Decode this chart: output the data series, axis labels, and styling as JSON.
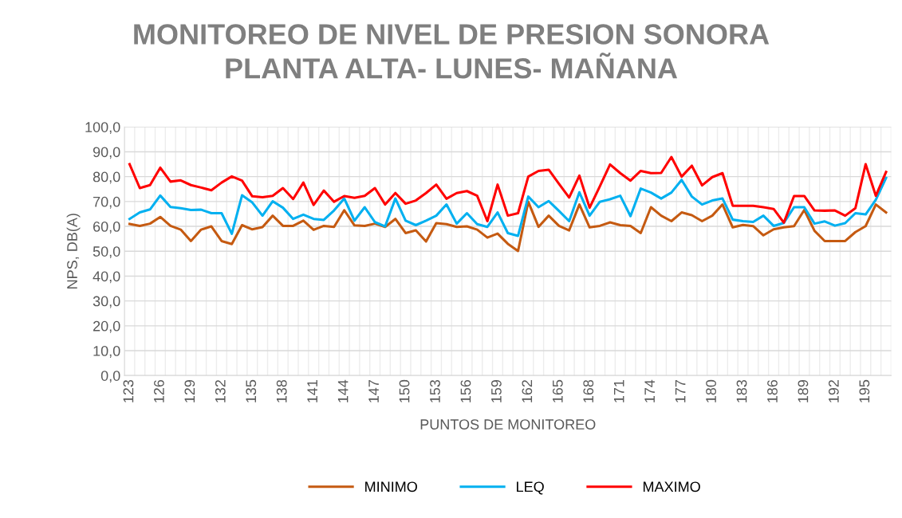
{
  "chart_data": {
    "type": "line",
    "title": "MONITOREO DE NIVEL DE PRESION SONORA\nPLANTA ALTA- LUNES- MAÑANA",
    "xlabel": "PUNTOS DE MONITOREO",
    "ylabel": "NPS, DB(A)",
    "categories": [
      "123",
      null,
      null,
      "126",
      null,
      null,
      "129",
      null,
      null,
      "132",
      null,
      null,
      "135",
      null,
      null,
      "138",
      null,
      null,
      "141",
      null,
      null,
      "144",
      null,
      null,
      "147",
      null,
      null,
      "150",
      null,
      null,
      "153",
      null,
      null,
      "156",
      null,
      null,
      "159",
      null,
      null,
      "162",
      null,
      null,
      "165",
      null,
      null,
      "168",
      null,
      null,
      "171",
      null,
      null,
      "174",
      null,
      null,
      "177",
      null,
      null,
      "180",
      null,
      null,
      "183",
      null,
      null,
      "186",
      null,
      null,
      "189",
      null,
      null,
      "192",
      null,
      null,
      "195",
      null,
      null
    ],
    "series": [
      {
        "name": "MINIMO",
        "color": "#c55a11",
        "values": [
          61.0,
          60.2,
          61.1,
          63.8,
          60.2,
          58.7,
          54.1,
          58.7,
          60.0,
          54.1,
          52.9,
          60.5,
          58.8,
          59.7,
          64.3,
          60.2,
          60.2,
          62.3,
          58.6,
          60.2,
          59.8,
          66.5,
          60.4,
          60.2,
          61.1,
          59.8,
          63.0,
          57.3,
          58.4,
          53.9,
          61.3,
          60.9,
          59.8,
          60.0,
          58.7,
          55.5,
          57.1,
          53.0,
          50.1,
          69.9,
          59.8,
          64.3,
          60.2,
          58.4,
          68.8,
          59.6,
          60.2,
          61.6,
          60.5,
          60.2,
          57.3,
          67.7,
          64.3,
          62.1,
          65.6,
          64.5,
          62.1,
          64.3,
          68.8,
          59.6,
          60.6,
          60.1,
          56.4,
          58.8,
          59.6,
          60.1,
          66.6,
          58.2,
          54.1,
          54.1,
          54.1,
          57.7,
          60.1,
          68.8,
          65.6
        ]
      },
      {
        "name": "LEQ",
        "color": "#00b0f0",
        "values": [
          63.0,
          65.6,
          66.8,
          72.4,
          67.8,
          67.3,
          66.6,
          66.7,
          65.3,
          65.3,
          57.0,
          72.5,
          69.6,
          64.3,
          70.1,
          67.5,
          63.0,
          64.7,
          63.0,
          62.6,
          66.4,
          71.2,
          62.3,
          67.7,
          61.7,
          60.0,
          71.2,
          62.3,
          60.5,
          62.3,
          64.3,
          68.8,
          61.1,
          65.3,
          60.9,
          59.8,
          65.6,
          57.3,
          56.2,
          72.0,
          67.7,
          70.2,
          66.2,
          62.1,
          73.7,
          64.3,
          69.9,
          70.9,
          72.3,
          64.1,
          75.2,
          73.6,
          71.2,
          73.6,
          78.7,
          72.0,
          68.8,
          70.4,
          71.2,
          62.7,
          62.1,
          61.8,
          64.3,
          60.2,
          61.4,
          67.7,
          67.7,
          61.1,
          62.0,
          60.3,
          61.3,
          65.3,
          64.8,
          70.7,
          79.5
        ]
      },
      {
        "name": "MAXIMO",
        "color": "#ff0000",
        "values": [
          85.0,
          75.4,
          76.6,
          83.6,
          78.0,
          78.5,
          76.6,
          75.6,
          74.5,
          77.6,
          80.1,
          78.4,
          72.1,
          71.7,
          72.3,
          75.4,
          71.0,
          77.6,
          68.6,
          74.4,
          69.9,
          72.2,
          71.5,
          72.3,
          75.4,
          68.8,
          73.4,
          69.1,
          70.4,
          73.4,
          76.8,
          71.1,
          73.4,
          74.2,
          72.3,
          62.1,
          76.8,
          64.3,
          65.3,
          80.0,
          82.3,
          82.8,
          77.1,
          71.6,
          80.4,
          67.5,
          76.1,
          84.9,
          81.4,
          78.4,
          82.3,
          81.4,
          81.5,
          87.9,
          80.0,
          84.4,
          76.5,
          79.8,
          81.4,
          68.3,
          68.3,
          68.3,
          67.7,
          67.0,
          61.5,
          72.2,
          72.2,
          66.4,
          66.3,
          66.4,
          64.3,
          67.3,
          85.0,
          72.3,
          81.9
        ]
      }
    ],
    "ylim": [
      0,
      100
    ],
    "yticks": [
      {
        "value": 0,
        "label": "0,0"
      },
      {
        "value": 10,
        "label": "10,0"
      },
      {
        "value": 20,
        "label": "20,0"
      },
      {
        "value": 30,
        "label": "30,0"
      },
      {
        "value": 40,
        "label": "40,0"
      },
      {
        "value": 50,
        "label": "50,0"
      },
      {
        "value": 60,
        "label": "60,0"
      },
      {
        "value": 70,
        "label": "70,0"
      },
      {
        "value": 80,
        "label": "80,0"
      },
      {
        "value": 90,
        "label": "90,0"
      },
      {
        "value": 100,
        "label": "100,0"
      }
    ],
    "grid": true,
    "legend": "bottom",
    "marker": "none",
    "line_style": "solid"
  }
}
